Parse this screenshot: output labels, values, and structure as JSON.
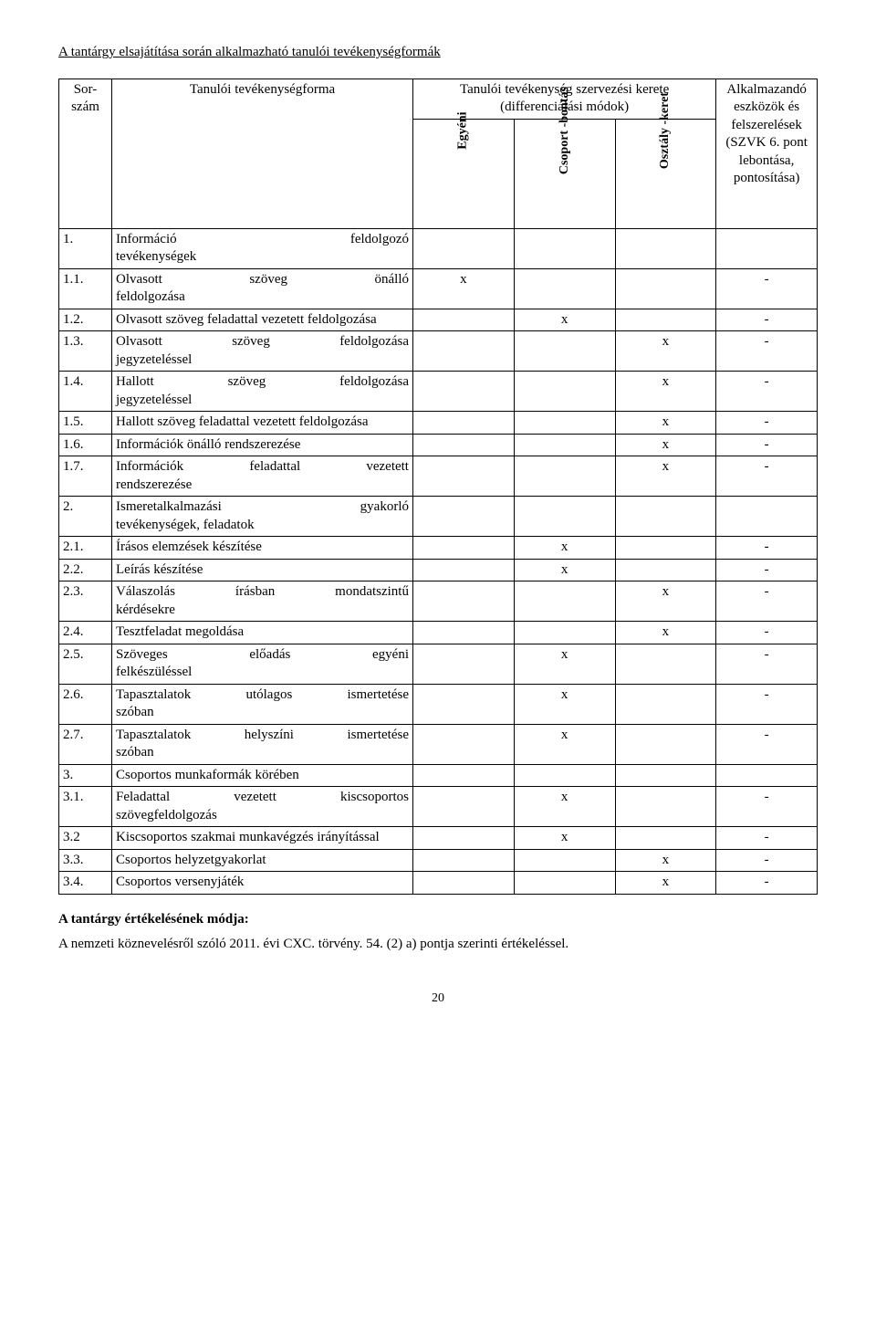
{
  "heading": "A tantárgy elsajátítása során alkalmazható tanulói tevékenységformák",
  "header": {
    "sorszam": "Sor-szám",
    "tevform": "Tanulói tevékenységforma",
    "kerete_top": "Tanulói tevékenység szervezési kerete (differenciálási módok)",
    "egyeni": "Egyéni",
    "csoport": "Csoport -bontás",
    "osztaly": "Osztály -keret",
    "tools": "Alkalmazandó eszközök és felszerelések (SZVK 6. pont lebontása, pontosítása)"
  },
  "rows": [
    {
      "num": "1.",
      "label": "Információ feldolgozó tevékenységek",
      "bold": true,
      "spread": [
        "Információ",
        "feldolgozó"
      ],
      "line2": "tevékenységek",
      "e": "",
      "cs": "",
      "o": "",
      "tool": ""
    },
    {
      "num": "1.1.",
      "label": "Olvasott szöveg önálló feldolgozása",
      "spread": [
        "Olvasott",
        "szöveg",
        "önálló"
      ],
      "line2": "feldolgozása",
      "e": "x",
      "cs": "",
      "o": "",
      "tool": "-"
    },
    {
      "num": "1.2.",
      "label": "Olvasott szöveg feladattal vezetett feldolgozása",
      "e": "",
      "cs": "x",
      "o": "",
      "tool": "-"
    },
    {
      "num": "1.3.",
      "label": "Olvasott szöveg feldolgozása jegyzeteléssel",
      "spread": [
        "Olvasott",
        "szöveg",
        "feldolgozása"
      ],
      "line2": "jegyzeteléssel",
      "e": "",
      "cs": "",
      "o": "x",
      "tool": "-"
    },
    {
      "num": "1.4.",
      "label": "Hallott szöveg feldolgozása jegyzeteléssel",
      "spread": [
        "Hallott",
        "szöveg",
        "feldolgozása"
      ],
      "line2": "jegyzeteléssel",
      "e": "",
      "cs": "",
      "o": "x",
      "tool": "-"
    },
    {
      "num": "1.5.",
      "label": "Hallott szöveg feladattal vezetett feldolgozása",
      "e": "",
      "cs": "",
      "o": "x",
      "tool": "-"
    },
    {
      "num": "1.6.",
      "label": "Információk önálló rendszerezése",
      "e": "",
      "cs": "",
      "o": "x",
      "tool": "-"
    },
    {
      "num": "1.7.",
      "label": "Információk feladattal vezetett rendszerezése",
      "spread": [
        "Információk",
        "feladattal",
        "vezetett"
      ],
      "line2": "rendszerezése",
      "e": "",
      "cs": "",
      "o": "x",
      "tool": "-"
    },
    {
      "num": "2.",
      "label": "Ismeretalkalmazási gyakorló tevékenységek, feladatok",
      "bold": true,
      "spread": [
        "Ismeretalkalmazási",
        "gyakorló"
      ],
      "line2": "tevékenységek, feladatok",
      "e": "",
      "cs": "",
      "o": "",
      "tool": ""
    },
    {
      "num": "2.1.",
      "label": "Írásos elemzések készítése",
      "e": "",
      "cs": "x",
      "o": "",
      "tool": "-"
    },
    {
      "num": "2.2.",
      "label": "Leírás készítése",
      "e": "",
      "cs": "x",
      "o": "",
      "tool": "-"
    },
    {
      "num": "2.3.",
      "label": "Válaszolás írásban mondatszintű kérdésekre",
      "spread": [
        "Válaszolás",
        "írásban",
        "mondatszintű"
      ],
      "line2": "kérdésekre",
      "e": "",
      "cs": "",
      "o": "x",
      "tool": "-"
    },
    {
      "num": "2.4.",
      "label": "Tesztfeladat megoldása",
      "e": "",
      "cs": "",
      "o": "x",
      "tool": "-"
    },
    {
      "num": "2.5.",
      "label": "Szöveges előadás egyéni felkészüléssel",
      "spread": [
        "Szöveges",
        "előadás",
        "egyéni"
      ],
      "line2": "felkészüléssel",
      "e": "",
      "cs": "x",
      "o": "",
      "tool": "-"
    },
    {
      "num": "2.6.",
      "label": "Tapasztalatok utólagos ismertetése szóban",
      "spread": [
        "Tapasztalatok",
        "utólagos",
        "ismertetése"
      ],
      "line2": "szóban",
      "e": "",
      "cs": "x",
      "o": "",
      "tool": "-"
    },
    {
      "num": "2.7.",
      "label": "Tapasztalatok helyszíni ismertetése szóban",
      "spread": [
        "Tapasztalatok",
        "helyszíni",
        "ismertetése"
      ],
      "line2": "szóban",
      "e": "",
      "cs": "x",
      "o": "",
      "tool": "-"
    },
    {
      "num": "3.",
      "label": "Csoportos munkaformák körében",
      "bold": true,
      "e": "",
      "cs": "",
      "o": "",
      "tool": ""
    },
    {
      "num": "3.1.",
      "label": "Feladattal vezetett kiscsoportos szövegfeldolgozás",
      "spread": [
        "Feladattal",
        "vezetett",
        "kiscsoportos"
      ],
      "line2": "szövegfeldolgozás",
      "e": "",
      "cs": "x",
      "o": "",
      "tool": "-"
    },
    {
      "num": "3.2",
      "label": "Kiscsoportos szakmai munkavégzés irányítással",
      "e": "",
      "cs": "x",
      "o": "",
      "tool": "-"
    },
    {
      "num": "3.3.",
      "label": "Csoportos helyzetgyakorlat",
      "e": "",
      "cs": "",
      "o": "x",
      "tool": "-"
    },
    {
      "num": "3.4.",
      "label": "Csoportos versenyjáték",
      "e": "",
      "cs": "",
      "o": "x",
      "tool": "-"
    }
  ],
  "eval_heading": "A tantárgy értékelésének módja:",
  "eval_text": "A nemzeti köznevelésről szóló 2011. évi CXC. törvény. 54. (2) a) pontja szerinti értékeléssel.",
  "page_number": "20",
  "colors": {
    "text": "#000000",
    "background": "#ffffff",
    "border": "#000000"
  },
  "fonts": {
    "family": "Times New Roman",
    "body_size_pt": 12,
    "rotated_size_pt": 11
  }
}
